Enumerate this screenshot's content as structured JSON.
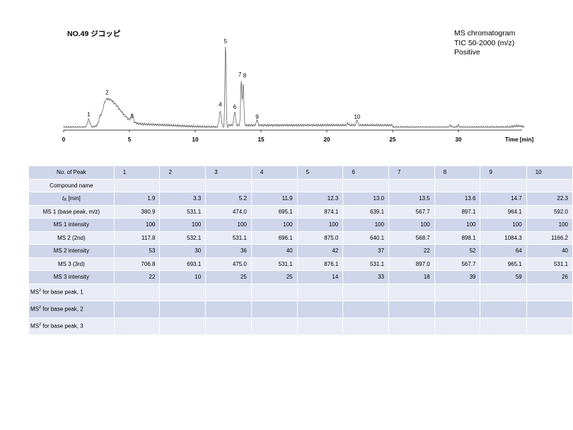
{
  "page": {
    "title": "NO.49 ジコッピ",
    "info_lines": [
      "MS chromatogram",
      "TIC 50-2000 (m/z)",
      "Positive"
    ]
  },
  "chart_data": {
    "type": "line",
    "xlabel": "Time [min]",
    "xlim": [
      0,
      35
    ],
    "x_ticks": [
      0,
      5,
      10,
      15,
      20,
      25,
      30
    ],
    "grid": false,
    "peaks": [
      {
        "label": "1",
        "x": 1.9,
        "y": 0.1
      },
      {
        "label": "2",
        "x": 3.3,
        "y": 0.37
      },
      {
        "label": "3",
        "x": 5.2,
        "y": 0.08
      },
      {
        "label": "4",
        "x": 11.9,
        "y": 0.22
      },
      {
        "label": "5",
        "x": 12.3,
        "y": 1.0
      },
      {
        "label": "6",
        "x": 13.0,
        "y": 0.19
      },
      {
        "label": "7",
        "x": 13.5,
        "y": 0.59
      },
      {
        "label": "8",
        "x": 13.6,
        "y": 0.58
      },
      {
        "label": "9",
        "x": 14.7,
        "y": 0.07
      },
      {
        "label": "10",
        "x": 22.3,
        "y": 0.07
      }
    ]
  },
  "table": {
    "peak_numbers": [
      "1",
      "2",
      "3",
      "4",
      "5",
      "6",
      "7",
      "8",
      "9",
      "10"
    ],
    "rows": [
      {
        "label": "Compound name",
        "values": [
          "",
          "",
          "",
          "",
          "",
          "",
          "",
          "",
          "",
          ""
        ]
      },
      {
        "label_main": "t",
        "label_sub": "R",
        "label_rest": " [min]",
        "values": [
          "1.9",
          "3.3",
          "5.2",
          "11.9",
          "12.3",
          "13.0",
          "13.5",
          "13.6",
          "14.7",
          "22.3"
        ]
      },
      {
        "label": "MS 1 (base peak, m/z)",
        "values": [
          "380.9",
          "531.1",
          "474.0",
          "695.1",
          "874.1",
          "639.1",
          "567.7",
          "897.1",
          "964.1",
          "592.0"
        ]
      },
      {
        "label": "MS 1 intensity",
        "values": [
          "100",
          "100",
          "100",
          "100",
          "100",
          "100",
          "100",
          "100",
          "100",
          "100"
        ]
      },
      {
        "label": "MS 2 (2nd)",
        "values": [
          "117.8",
          "532.1",
          "531.1",
          "696.1",
          "875.0",
          "640.1",
          "568.7",
          "898.1",
          "1084.3",
          "1166.2"
        ]
      },
      {
        "label": "MS 2 intensity",
        "values": [
          "53",
          "30",
          "36",
          "40",
          "42",
          "37",
          "22",
          "52",
          "64",
          "40"
        ]
      },
      {
        "label": "MS 3 (3rd)",
        "values": [
          "706.8",
          "693.1",
          "475.0",
          "531.1",
          "876.1",
          "531.1",
          "897.0",
          "567.7",
          "965.1",
          "531.1"
        ]
      },
      {
        "label": "MS 3 intensity",
        "values": [
          "22",
          "10",
          "25",
          "25",
          "14",
          "33",
          "18",
          "39",
          "59",
          "26"
        ]
      }
    ],
    "header_label": "No. of Peak",
    "ms2_rows": [
      {
        "pre": "MS",
        "sup": "2",
        "post": " for base peak, 1"
      },
      {
        "pre": "MS",
        "sup": "2",
        "post": " for base peak, 2"
      },
      {
        "pre": "MS",
        "sup": "2",
        "post": " for base peak, 3"
      }
    ]
  }
}
